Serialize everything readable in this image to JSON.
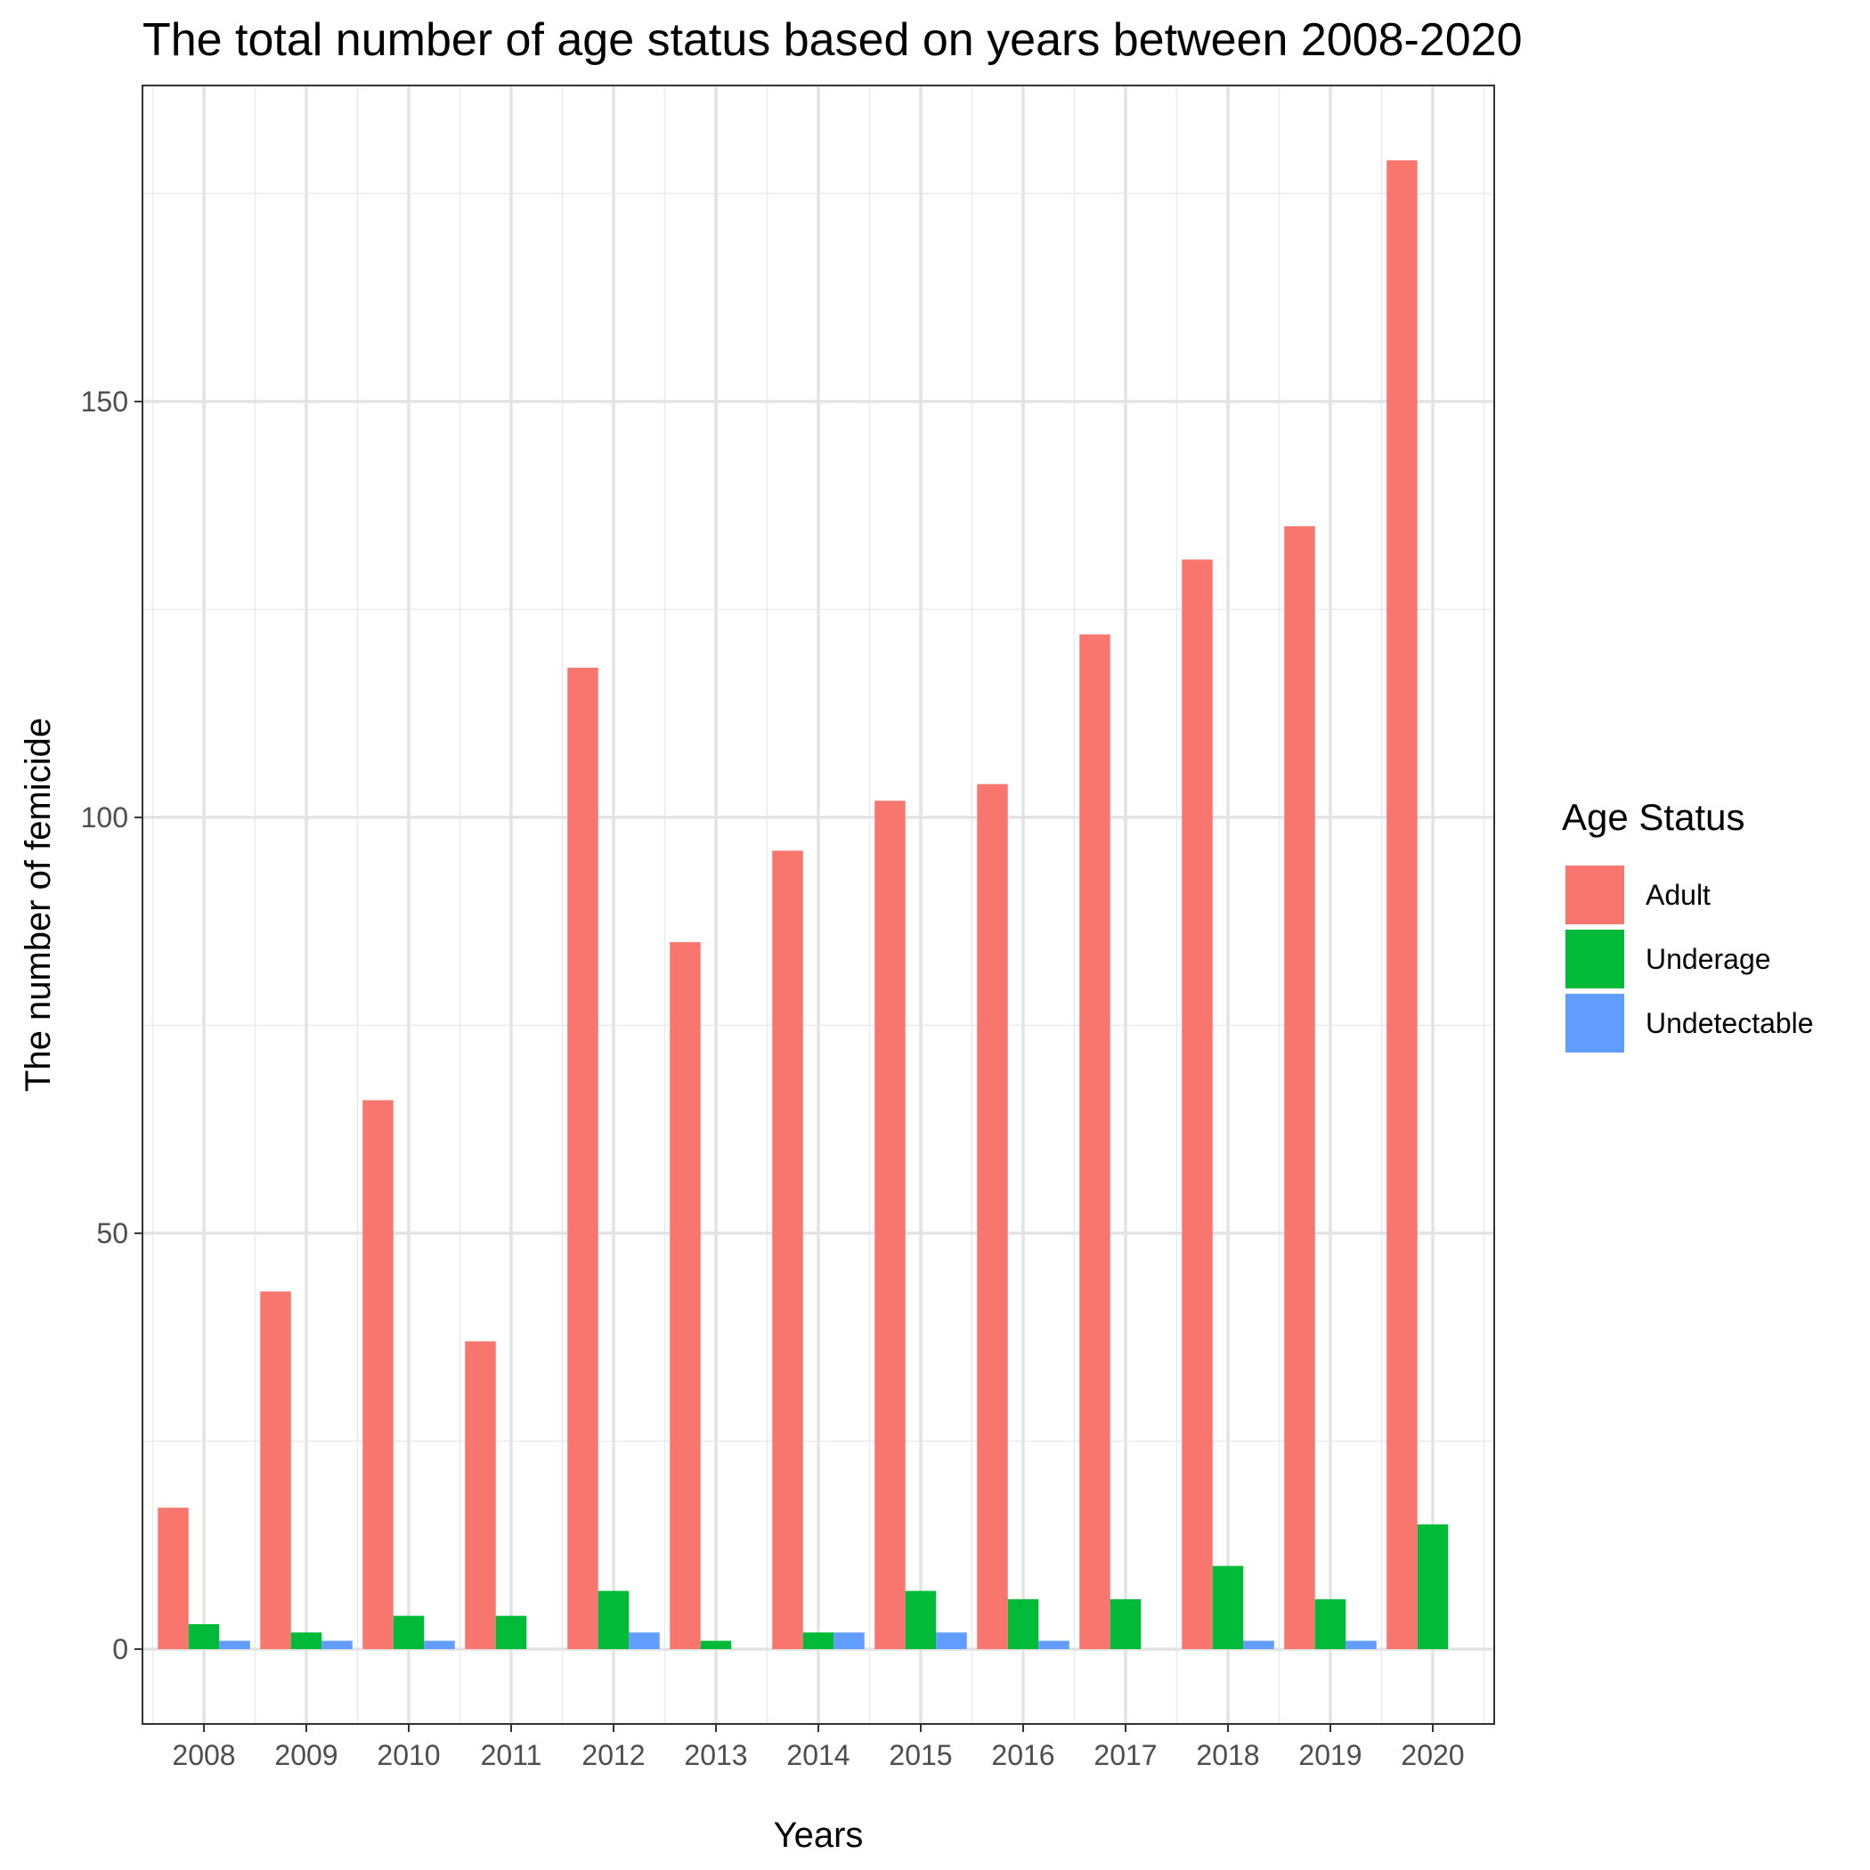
{
  "chart_data": {
    "type": "bar",
    "title": "The total number of age status based on years between 2008-2020",
    "xlabel": "Years",
    "ylabel": "The number of femicide",
    "categories": [
      "2008",
      "2009",
      "2010",
      "2011",
      "2012",
      "2013",
      "2014",
      "2015",
      "2016",
      "2017",
      "2018",
      "2019",
      "2020"
    ],
    "series": [
      {
        "name": "Adult",
        "color": "#F8766D",
        "values": [
          17,
          43,
          66,
          37,
          118,
          85,
          96,
          102,
          104,
          122,
          131,
          135,
          179
        ]
      },
      {
        "name": "Underage",
        "color": "#00BA38",
        "values": [
          3,
          2,
          4,
          4,
          7,
          1,
          2,
          7,
          6,
          6,
          10,
          6,
          15
        ]
      },
      {
        "name": "Undetectable",
        "color": "#619CFF",
        "values": [
          1,
          1,
          1,
          null,
          2,
          null,
          2,
          2,
          1,
          null,
          1,
          1,
          null
        ]
      }
    ],
    "yticks": [
      0,
      50,
      100,
      150
    ],
    "ylim": [
      -9,
      188
    ],
    "grid": true,
    "legend": {
      "title": "Age Status",
      "position": "right"
    }
  }
}
